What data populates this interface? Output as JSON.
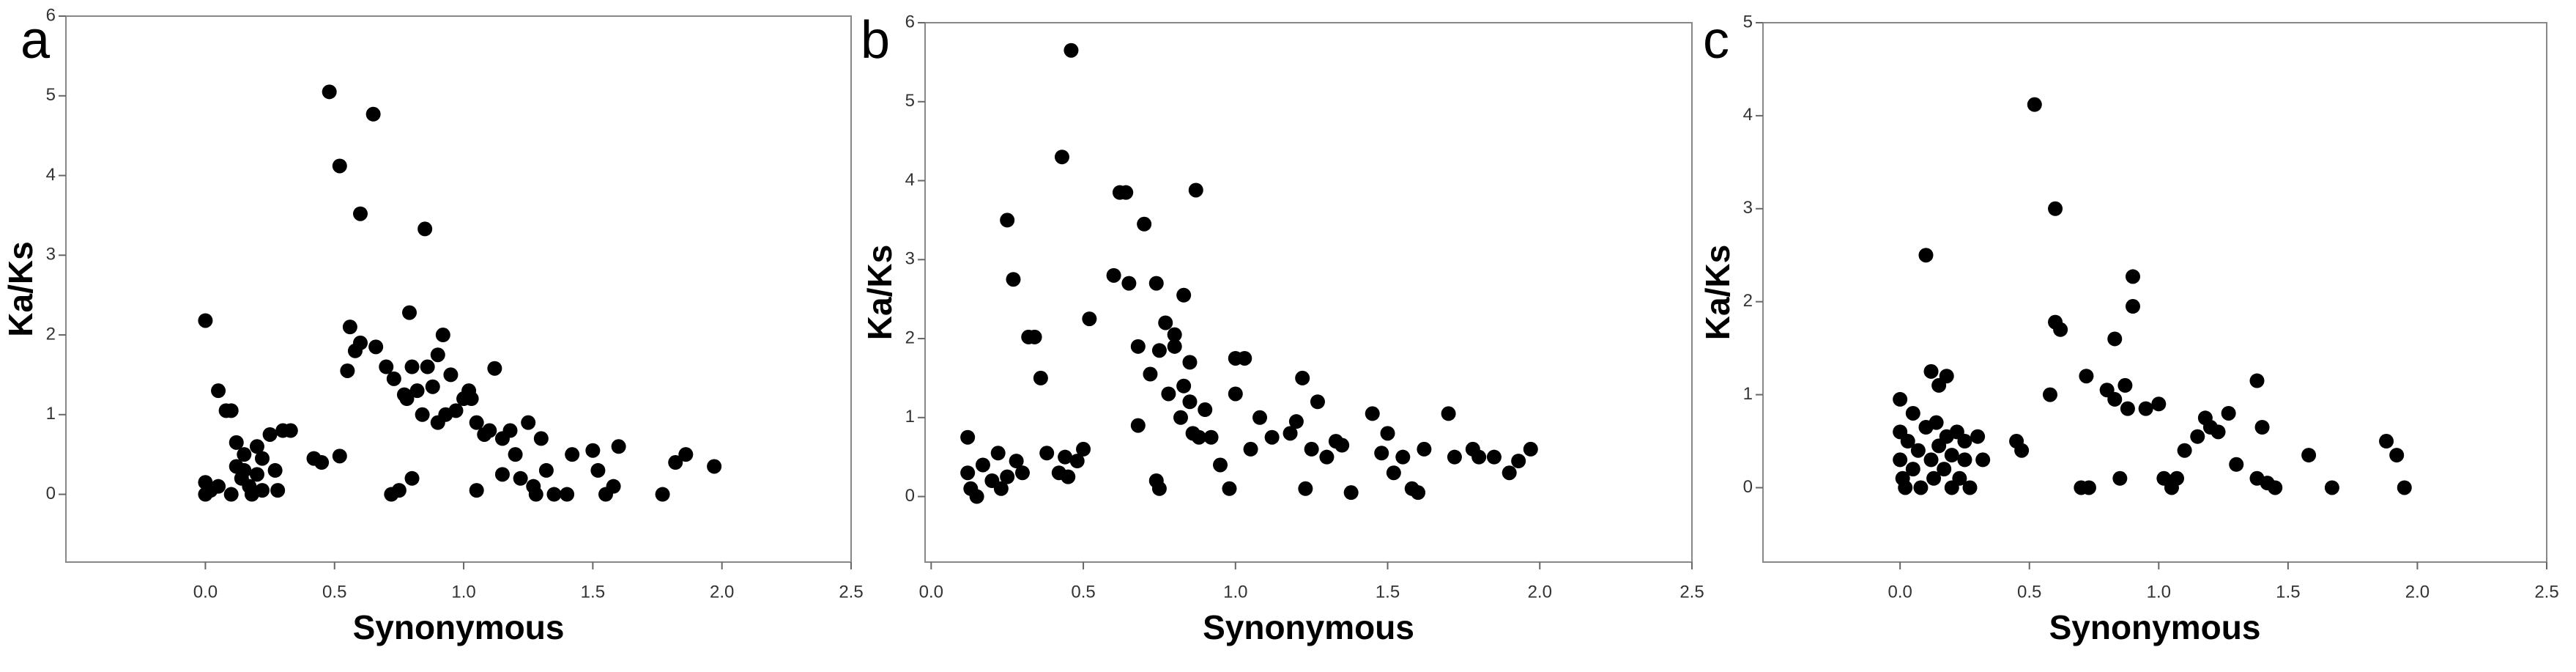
{
  "chart_data": [
    {
      "type": "scatter",
      "panel_label": "a",
      "xlabel": "Synonymous",
      "ylabel": "Ka/Ks",
      "color": "#000000",
      "xlim": [
        -0.54,
        2.5
      ],
      "ylim": [
        -0.85,
        6
      ],
      "xticks": [
        {
          "value": 0,
          "label": "0.0"
        },
        0.5,
        {
          "value": 1,
          "label": "1.0"
        },
        1.5,
        {
          "value": 2,
          "label": "2.0"
        },
        2.5
      ],
      "yticks": [
        0,
        1,
        2,
        3,
        4,
        5,
        6
      ],
      "x": [
        0.0,
        0.0,
        0.02,
        0.0,
        0.05,
        0.08,
        0.1,
        0.05,
        0.1,
        0.12,
        0.12,
        0.14,
        0.15,
        0.15,
        0.17,
        0.18,
        0.2,
        0.2,
        0.22,
        0.22,
        0.25,
        0.27,
        0.28,
        0.3,
        0.33,
        0.42,
        0.45,
        0.48,
        0.52,
        0.52,
        0.55,
        0.56,
        0.58,
        0.6,
        0.6,
        0.65,
        0.66,
        0.7,
        0.72,
        0.73,
        0.75,
        0.77,
        0.78,
        0.79,
        0.8,
        0.8,
        0.82,
        0.84,
        0.85,
        0.86,
        0.88,
        0.9,
        0.9,
        0.92,
        0.93,
        0.95,
        0.97,
        1.0,
        1.02,
        1.03,
        1.05,
        1.05,
        1.08,
        1.1,
        1.12,
        1.15,
        1.15,
        1.18,
        1.2,
        1.22,
        1.25,
        1.27,
        1.28,
        1.3,
        1.32,
        1.35,
        1.4,
        1.42,
        1.5,
        1.52,
        1.55,
        1.58,
        1.6,
        1.77,
        1.82,
        1.86,
        1.97
      ],
      "values": [
        2.18,
        0.15,
        0.05,
        0.0,
        1.3,
        1.05,
        1.05,
        0.1,
        0.0,
        0.65,
        0.35,
        0.2,
        0.5,
        0.3,
        0.1,
        0.0,
        0.25,
        0.6,
        0.05,
        0.45,
        0.75,
        0.3,
        0.05,
        0.8,
        0.8,
        0.45,
        0.4,
        5.05,
        4.12,
        0.48,
        1.55,
        2.1,
        1.8,
        3.52,
        1.9,
        4.77,
        1.85,
        1.6,
        0.0,
        1.45,
        0.05,
        1.25,
        1.2,
        2.28,
        1.6,
        0.2,
        1.3,
        1.0,
        3.33,
        1.6,
        1.35,
        0.9,
        1.75,
        2.0,
        1.0,
        1.5,
        1.05,
        1.2,
        1.3,
        1.2,
        0.05,
        0.9,
        0.75,
        0.8,
        1.58,
        0.7,
        0.25,
        0.8,
        0.5,
        0.2,
        0.9,
        0.1,
        0.0,
        0.7,
        0.3,
        0.0,
        0.0,
        0.5,
        0.55,
        0.3,
        0.0,
        0.1,
        0.6,
        0.0,
        0.4,
        0.5,
        0.35
      ]
    },
    {
      "type": "scatter",
      "panel_label": "b",
      "xlabel": "Synonymous",
      "ylabel": "Ka/Ks",
      "color": "#000000",
      "xlim": [
        -0.02,
        2.5
      ],
      "ylim": [
        -0.83,
        6
      ],
      "xticks": [
        {
          "value": 0,
          "label": "0.0"
        },
        0.5,
        {
          "value": 1,
          "label": "1.0"
        },
        1.5,
        {
          "value": 2,
          "label": "2.0"
        },
        2.5
      ],
      "yticks": [
        0,
        1,
        2,
        3,
        4,
        5,
        6
      ],
      "x": [
        0.12,
        0.12,
        0.13,
        0.15,
        0.17,
        0.2,
        0.22,
        0.23,
        0.25,
        0.25,
        0.27,
        0.28,
        0.3,
        0.32,
        0.34,
        0.36,
        0.38,
        0.42,
        0.43,
        0.44,
        0.45,
        0.46,
        0.48,
        0.5,
        0.52,
        0.6,
        0.62,
        0.64,
        0.65,
        0.68,
        0.7,
        0.68,
        0.72,
        0.74,
        0.74,
        0.75,
        0.75,
        0.77,
        0.78,
        0.8,
        0.8,
        0.82,
        0.83,
        0.83,
        0.85,
        0.85,
        0.86,
        0.87,
        0.88,
        0.9,
        0.92,
        0.95,
        0.98,
        1.0,
        1.0,
        1.03,
        1.05,
        1.08,
        1.12,
        1.18,
        1.2,
        1.22,
        1.23,
        1.25,
        1.27,
        1.3,
        1.33,
        1.35,
        1.38,
        1.45,
        1.48,
        1.5,
        1.52,
        1.55,
        1.58,
        1.6,
        1.62,
        1.7,
        1.72,
        1.78,
        1.8,
        1.85,
        1.9,
        1.93,
        1.97
      ],
      "values": [
        0.75,
        0.3,
        0.1,
        0.0,
        0.4,
        0.2,
        0.55,
        0.1,
        0.25,
        3.5,
        2.75,
        0.45,
        0.3,
        2.02,
        2.02,
        1.5,
        0.55,
        0.3,
        4.3,
        0.5,
        0.25,
        5.65,
        0.45,
        0.6,
        2.25,
        2.8,
        3.85,
        3.85,
        2.7,
        1.9,
        3.45,
        0.9,
        1.55,
        2.7,
        0.2,
        0.1,
        1.85,
        2.2,
        1.3,
        1.9,
        2.05,
        1.0,
        2.55,
        1.4,
        1.7,
        1.2,
        0.8,
        3.88,
        0.75,
        1.1,
        0.75,
        0.4,
        0.1,
        1.3,
        1.75,
        1.75,
        0.6,
        1.0,
        0.75,
        0.8,
        0.95,
        1.5,
        0.1,
        0.6,
        1.2,
        0.5,
        0.7,
        0.65,
        0.05,
        1.05,
        0.55,
        0.8,
        0.3,
        0.5,
        0.1,
        0.05,
        0.6,
        1.05,
        0.5,
        0.6,
        0.5,
        0.5,
        0.3,
        0.45,
        0.6
      ]
    },
    {
      "type": "scatter",
      "panel_label": "c",
      "xlabel": "Synonymous",
      "ylabel": "Ka/Ks",
      "color": "#000000",
      "xlim": [
        -0.53,
        2.5
      ],
      "ylim": [
        -0.8,
        5
      ],
      "xticks": [
        {
          "value": 0,
          "label": "0.0"
        },
        0.5,
        {
          "value": 1,
          "label": "1.0"
        },
        1.5,
        {
          "value": 2,
          "label": "2.0"
        },
        2.5
      ],
      "yticks": [
        0,
        1,
        2,
        3,
        4,
        5
      ],
      "x": [
        0.0,
        0.0,
        0.0,
        0.01,
        0.02,
        0.03,
        0.05,
        0.05,
        0.07,
        0.08,
        0.1,
        0.1,
        0.12,
        0.12,
        0.13,
        0.14,
        0.15,
        0.15,
        0.17,
        0.18,
        0.18,
        0.2,
        0.2,
        0.22,
        0.23,
        0.25,
        0.25,
        0.27,
        0.3,
        0.32,
        0.45,
        0.47,
        0.52,
        0.58,
        0.6,
        0.6,
        0.62,
        0.7,
        0.72,
        0.73,
        0.8,
        0.83,
        0.83,
        0.85,
        0.87,
        0.88,
        0.9,
        0.9,
        0.95,
        1.0,
        1.02,
        1.05,
        1.07,
        1.1,
        1.15,
        1.18,
        1.2,
        1.23,
        1.27,
        1.3,
        1.38,
        1.38,
        1.4,
        1.42,
        1.45,
        1.58,
        1.67,
        1.88,
        1.92,
        1.95
      ],
      "values": [
        0.95,
        0.6,
        0.3,
        0.1,
        0.0,
        0.5,
        0.2,
        0.8,
        0.4,
        0.0,
        2.5,
        0.65,
        1.25,
        0.3,
        0.1,
        0.7,
        1.1,
        0.45,
        0.2,
        1.2,
        0.55,
        0.0,
        0.35,
        0.6,
        0.1,
        0.3,
        0.5,
        0.0,
        0.55,
        0.3,
        0.5,
        0.4,
        4.12,
        1.0,
        3.0,
        1.78,
        1.7,
        0.0,
        1.2,
        0.0,
        1.05,
        1.6,
        0.95,
        0.1,
        1.1,
        0.85,
        2.27,
        1.95,
        0.85,
        0.9,
        0.1,
        0.0,
        0.1,
        0.4,
        0.55,
        0.75,
        0.65,
        0.6,
        0.8,
        0.25,
        1.15,
        0.1,
        0.65,
        0.05,
        0.0,
        0.35,
        0.0,
        0.5,
        0.35,
        0.0
      ]
    }
  ]
}
